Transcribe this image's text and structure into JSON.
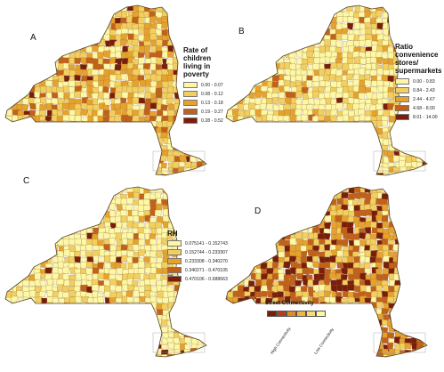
{
  "panels": [
    {
      "letter": "A",
      "legend_title": [
        "Rate of",
        "children",
        "living in",
        "poverty"
      ],
      "classes": [
        {
          "label": "0.00 - 0.07",
          "color": "#fdf7a6"
        },
        {
          "label": "0.08 - 0.12",
          "color": "#f2cf5e"
        },
        {
          "label": "0.13 - 0.18",
          "color": "#e6a22c"
        },
        {
          "label": "0.19 - 0.27",
          "color": "#c2621a"
        },
        {
          "label": "0.28 - 0.52",
          "color": "#7a1e0c"
        }
      ]
    },
    {
      "letter": "B",
      "legend_title": [
        "Ratio",
        "convenience",
        "stores/",
        "supermarkets"
      ],
      "classes": [
        {
          "label": "0.00 - 0.83",
          "color": "#fdf7a6"
        },
        {
          "label": "0.84 - 2.43",
          "color": "#f2cf5e"
        },
        {
          "label": "2.44 - 4.67",
          "color": "#e6a22c"
        },
        {
          "label": "4.68 - 8.00",
          "color": "#c2621a"
        },
        {
          "label": "8.01 - 14.00",
          "color": "#7a1e0c"
        }
      ]
    },
    {
      "letter": "C",
      "legend_title": [
        "RH"
      ],
      "classes": [
        {
          "label": "0.075141 - 0.152743",
          "color": "#fdf7a6"
        },
        {
          "label": "0.152744 - 0.233307",
          "color": "#f2cf5e"
        },
        {
          "label": "0.233308 - 0.340270",
          "color": "#e6a22c"
        },
        {
          "label": "0.340271 - 0.470105",
          "color": "#c2621a"
        },
        {
          "label": "0.470106 - 0.688663",
          "color": "#7a1e0c"
        }
      ]
    },
    {
      "letter": "D",
      "legend_title": [
        "Street Connectivity"
      ],
      "scale_colors": [
        "#7a1e0c",
        "#b0401a",
        "#e08a2a",
        "#f0b640",
        "#f7dc72",
        "#fdf7a6"
      ],
      "scale_low_label": "High Connectivity",
      "scale_high_label": "Low Connectivity"
    }
  ],
  "map_palette": {
    "boundary": "#8c6a3a",
    "water": "#ffffff"
  }
}
